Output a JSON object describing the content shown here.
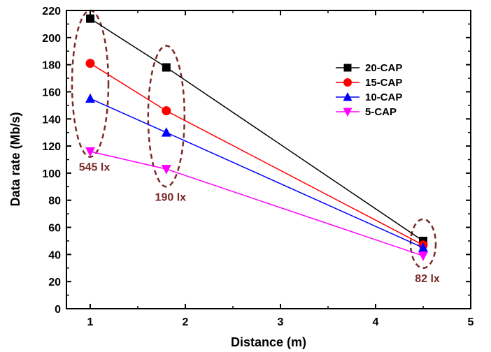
{
  "chart_data": {
    "type": "line",
    "xlabel": "Distance (m)",
    "ylabel": "Data rate (Mb/s)",
    "xlim": [
      0.75,
      5
    ],
    "ylim": [
      0,
      220
    ],
    "x_ticks": [
      "1",
      "2",
      "3",
      "4",
      "5"
    ],
    "y_ticks": [
      "0",
      "20",
      "40",
      "60",
      "80",
      "100",
      "120",
      "140",
      "160",
      "180",
      "200",
      "220"
    ],
    "grid": false,
    "legend_position": "right",
    "x": [
      1,
      1.8,
      4.5
    ],
    "series": [
      {
        "name": "20-CAP",
        "values": [
          214,
          178,
          50
        ],
        "color": "#000000",
        "marker": "square"
      },
      {
        "name": "15-CAP",
        "values": [
          181,
          146,
          47
        ],
        "color": "#ff0000",
        "marker": "circle"
      },
      {
        "name": "10-CAP",
        "values": [
          155,
          130,
          45
        ],
        "color": "#0000ff",
        "marker": "triangle-up"
      },
      {
        "name": "5-CAP",
        "values": [
          116,
          103,
          39
        ],
        "color": "#ff00ff",
        "marker": "triangle-down"
      }
    ],
    "annotations": [
      {
        "text": "545 lx",
        "x": 1,
        "y_min": 112,
        "y_max": 220
      },
      {
        "text": "190 lx",
        "x": 1.8,
        "y_min": 90,
        "y_max": 194
      },
      {
        "text": "82 lx",
        "x": 4.5,
        "y_min": 30,
        "y_max": 66
      }
    ],
    "annotation_color": "#7a2a2a"
  }
}
